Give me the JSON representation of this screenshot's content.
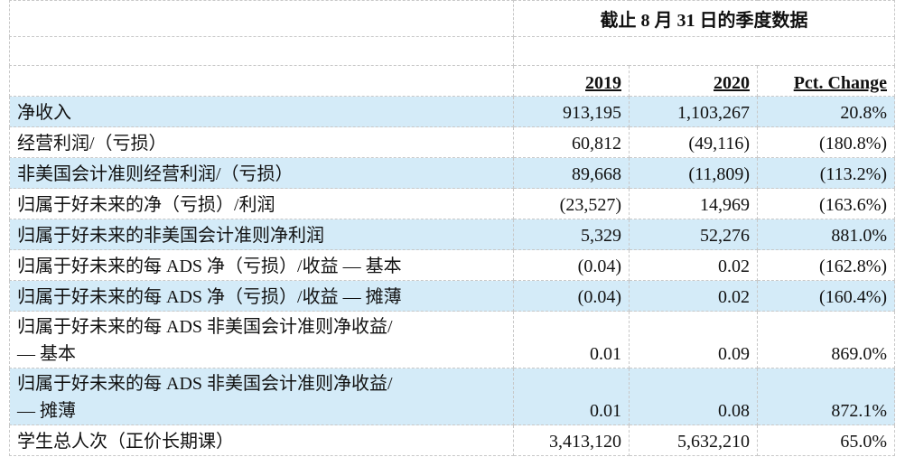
{
  "table": {
    "title": "截止 8 月 31 日的季度数据",
    "columns": [
      "2019",
      "2020",
      "Pct. Change"
    ],
    "rows": [
      [
        "净收入",
        "913,195",
        "1,103,267",
        "20.8%"
      ],
      [
        "经营利润/（亏损）",
        "60,812",
        "(49,116)",
        "(180.8%)"
      ],
      [
        "非美国会计准则经营利润/（亏损）",
        "89,668",
        "(11,809)",
        "(113.2%)"
      ],
      [
        "归属于好未来的净（亏损）/利润",
        "(23,527)",
        "14,969",
        "(163.6%)"
      ],
      [
        "归属于好未来的非美国会计准则净利润",
        "5,329",
        "52,276",
        "881.0%"
      ],
      [
        "归属于好未来的每 ADS 净（亏损）/收益 — 基本",
        "(0.04)",
        "0.02",
        "(162.8%)"
      ],
      [
        "归属于好未来的每 ADS 净（亏损）/收益 — 摊薄",
        "(0.04)",
        "0.02",
        "(160.4%)"
      ],
      [
        "归属于好未来的每 ADS 非美国会计准则净收益/\n— 基本",
        "0.01",
        "0.09",
        "869.0%"
      ],
      [
        "归属于好未来的每 ADS 非美国会计准则净收益/\n— 摊薄",
        "0.01",
        "0.08",
        "872.1%"
      ],
      [
        "学生总人次（正价长期课）",
        "3,413,120",
        "5,632,210",
        "65.0%"
      ]
    ]
  }
}
